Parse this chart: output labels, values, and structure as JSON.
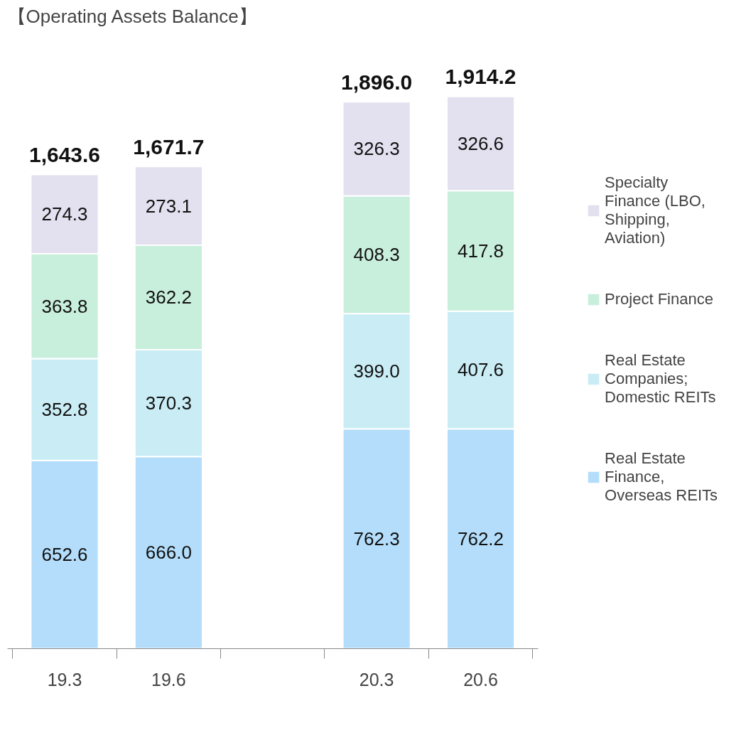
{
  "chart_data": {
    "type": "bar",
    "title": "【Operating Assets Balance】",
    "stacked": true,
    "data_labels": true,
    "legend": "right",
    "grid": false,
    "categories": [
      "19.3",
      "19.6",
      null,
      "20.3",
      "20.6"
    ],
    "series": [
      {
        "name": "Real Estate Finance, Overseas REITs",
        "color": "#b3ddfa",
        "values": [
          652.6,
          666,
          null,
          762.3,
          762.2
        ],
        "value_labels": [
          "652.6",
          "666.0",
          null,
          "762.3",
          "762.2"
        ]
      },
      {
        "name": "Real Estate Companies; Domestic REITs",
        "color": "#c9ecf5",
        "values": [
          352.8,
          370.3,
          null,
          399,
          407.6
        ],
        "value_labels": [
          "352.8",
          "370.3",
          null,
          "399.0",
          "407.6"
        ]
      },
      {
        "name": "Project Finance",
        "color": "#c8eedc",
        "values": [
          363.8,
          362.2,
          null,
          408.3,
          417.8
        ]
      },
      {
        "name": "Specialty Finance (LBO, Shipping, Aviation)",
        "color": "#e3e0ef",
        "values": [
          274.3,
          273.1,
          null,
          326.3,
          326.6
        ]
      }
    ],
    "totals": [
      "1,643.6",
      "1,671.7",
      null,
      "1,896.0",
      "1,914.2"
    ]
  }
}
